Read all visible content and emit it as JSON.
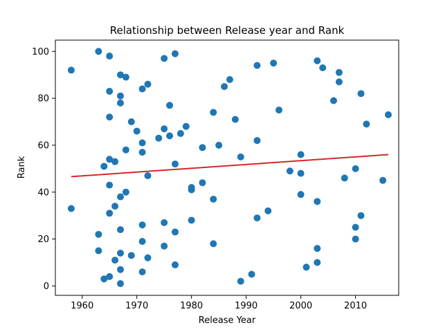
{
  "chart_data": {
    "type": "scatter",
    "title": "Relationship between Release year and Rank",
    "xlabel": "Release Year",
    "ylabel": "Rank",
    "xlim": [
      1955.1,
      2017.9
    ],
    "ylim": [
      -4,
      104.8
    ],
    "xticks": [
      1960,
      1970,
      1980,
      1990,
      2000,
      2010
    ],
    "yticks": [
      0,
      20,
      40,
      60,
      80,
      100
    ],
    "grid": false,
    "point_color": "#1f77b4",
    "trend_color": "#d62728",
    "trendline": {
      "x": [
        1958,
        2016
      ],
      "y": [
        46.6,
        56.0
      ]
    },
    "points": [
      [
        1958,
        92
      ],
      [
        1958,
        33
      ],
      [
        1963,
        100
      ],
      [
        1963,
        22
      ],
      [
        1963,
        15
      ],
      [
        1964,
        51
      ],
      [
        1964,
        3
      ],
      [
        1965,
        98
      ],
      [
        1965,
        83
      ],
      [
        1965,
        72
      ],
      [
        1965,
        54
      ],
      [
        1965,
        43
      ],
      [
        1965,
        31
      ],
      [
        1965,
        4
      ],
      [
        1966,
        53
      ],
      [
        1966,
        34
      ],
      [
        1966,
        11
      ],
      [
        1967,
        90
      ],
      [
        1967,
        81
      ],
      [
        1967,
        78
      ],
      [
        1967,
        38
      ],
      [
        1967,
        24
      ],
      [
        1967,
        14
      ],
      [
        1967,
        7
      ],
      [
        1967,
        1
      ],
      [
        1968,
        89
      ],
      [
        1968,
        58
      ],
      [
        1968,
        40
      ],
      [
        1969,
        70
      ],
      [
        1969,
        13
      ],
      [
        1970,
        66
      ],
      [
        1971,
        84
      ],
      [
        1971,
        61
      ],
      [
        1971,
        57
      ],
      [
        1971,
        26
      ],
      [
        1971,
        19
      ],
      [
        1971,
        6
      ],
      [
        1972,
        86
      ],
      [
        1972,
        47
      ],
      [
        1972,
        12
      ],
      [
        1974,
        63
      ],
      [
        1975,
        97
      ],
      [
        1975,
        67
      ],
      [
        1975,
        27
      ],
      [
        1975,
        17
      ],
      [
        1976,
        77
      ],
      [
        1976,
        64
      ],
      [
        1977,
        99
      ],
      [
        1977,
        52
      ],
      [
        1977,
        23
      ],
      [
        1977,
        9
      ],
      [
        1978,
        65
      ],
      [
        1979,
        68
      ],
      [
        1980,
        42
      ],
      [
        1980,
        41
      ],
      [
        1980,
        28
      ],
      [
        1982,
        59
      ],
      [
        1982,
        44
      ],
      [
        1984,
        74
      ],
      [
        1984,
        37
      ],
      [
        1984,
        18
      ],
      [
        1985,
        60
      ],
      [
        1986,
        85
      ],
      [
        1987,
        88
      ],
      [
        1988,
        71
      ],
      [
        1989,
        55
      ],
      [
        1989,
        2
      ],
      [
        1991,
        5
      ],
      [
        1992,
        94
      ],
      [
        1992,
        62
      ],
      [
        1992,
        29
      ],
      [
        1994,
        32
      ],
      [
        1995,
        95
      ],
      [
        1996,
        75
      ],
      [
        1998,
        49
      ],
      [
        2000,
        56
      ],
      [
        2000,
        48
      ],
      [
        2000,
        39
      ],
      [
        2001,
        8
      ],
      [
        2003,
        96
      ],
      [
        2003,
        36
      ],
      [
        2003,
        16
      ],
      [
        2003,
        10
      ],
      [
        2004,
        93
      ],
      [
        2006,
        79
      ],
      [
        2007,
        91
      ],
      [
        2007,
        87
      ],
      [
        2008,
        46
      ],
      [
        2010,
        50
      ],
      [
        2010,
        25
      ],
      [
        2010,
        20
      ],
      [
        2011,
        82
      ],
      [
        2011,
        30
      ],
      [
        2012,
        69
      ],
      [
        2015,
        45
      ],
      [
        2016,
        73
      ]
    ]
  }
}
